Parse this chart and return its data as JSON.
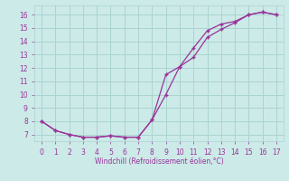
{
  "xlabel": "Windchill (Refroidissement éolien,°C)",
  "background_color": "#cceae8",
  "grid_color": "#aad4d0",
  "line_color": "#993399",
  "x_line1": [
    0,
    1,
    2,
    3,
    4,
    5,
    6,
    7,
    8,
    9,
    10,
    11,
    12,
    13,
    14,
    15,
    16,
    17
  ],
  "y_line1": [
    8.0,
    7.3,
    7.0,
    6.8,
    6.8,
    6.9,
    6.8,
    6.8,
    8.1,
    10.0,
    12.1,
    12.8,
    14.3,
    14.9,
    15.4,
    16.0,
    16.2,
    16.0
  ],
  "x_line2": [
    0,
    1,
    2,
    3,
    4,
    5,
    6,
    7,
    8,
    9,
    10,
    11,
    12,
    13,
    14,
    15,
    16,
    17
  ],
  "y_line2": [
    8.0,
    7.3,
    7.0,
    6.8,
    6.8,
    6.9,
    6.8,
    6.8,
    8.1,
    11.5,
    12.1,
    13.5,
    14.8,
    15.3,
    15.5,
    16.0,
    16.2,
    16.0
  ],
  "xlim": [
    -0.5,
    17.5
  ],
  "ylim": [
    6.5,
    16.7
  ],
  "yticks": [
    7,
    8,
    9,
    10,
    11,
    12,
    13,
    14,
    15,
    16
  ],
  "xticks": [
    0,
    1,
    2,
    3,
    4,
    5,
    6,
    7,
    8,
    9,
    10,
    11,
    12,
    13,
    14,
    15,
    16,
    17
  ]
}
